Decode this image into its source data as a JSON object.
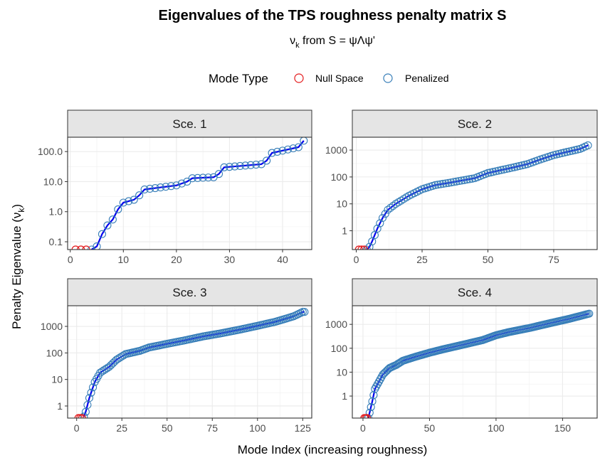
{
  "chart_data": {
    "type": "scatter",
    "title": "Eigenvalues of the TPS roughness penalty matrix S",
    "subtitle": {
      "lhs": "ν",
      "sub": "k",
      "rhs": " from S = ψΛψ'"
    },
    "xlabel": "Mode Index (increasing roughness)",
    "ylabel": {
      "main": "Penalty Eigenvalue (ν",
      "sub": "k",
      "close": ")"
    },
    "y_scale": "log10",
    "legend": {
      "title": "Mode Type",
      "position": "top",
      "entries": [
        {
          "label": "Null Space",
          "color": "#e41a1c"
        },
        {
          "label": "Penalized",
          "color": "#377eb8"
        }
      ]
    },
    "line_color": "#0000ee",
    "panels": [
      {
        "strip": "Sce. 1",
        "n_modes": 44,
        "xlim": [
          -0.5,
          45.5
        ],
        "ylim": [
          0.055,
          300
        ],
        "x_ticks": [
          0,
          10,
          20,
          30,
          40
        ],
        "y_ticks": [
          0.1,
          1,
          10,
          100
        ],
        "y_tick_labels": [
          "0.1",
          "1.0",
          "10.0",
          "100.0"
        ],
        "null_space": [
          {
            "x": 1,
            "y": 0.055
          },
          {
            "x": 2,
            "y": 0.055
          },
          {
            "x": 3,
            "y": 0.055
          }
        ],
        "curve": [
          [
            4,
            0.055
          ],
          [
            5,
            0.07
          ],
          [
            6,
            0.18
          ],
          [
            7,
            0.35
          ],
          [
            8,
            0.55
          ],
          [
            9,
            1.2
          ],
          [
            10,
            2.0
          ],
          [
            12,
            2.5
          ],
          [
            13,
            3.5
          ],
          [
            14,
            5.5
          ],
          [
            20,
            7.5
          ],
          [
            22,
            10
          ],
          [
            23,
            13
          ],
          [
            27,
            14
          ],
          [
            28,
            18
          ],
          [
            29,
            30
          ],
          [
            36,
            38
          ],
          [
            37,
            50
          ],
          [
            38,
            90
          ],
          [
            43,
            140
          ],
          [
            44,
            230
          ]
        ]
      },
      {
        "strip": "Sce. 2",
        "n_modes": 88,
        "xlim": [
          -1.5,
          91.5
        ],
        "ylim": [
          0.2,
          3000
        ],
        "x_ticks": [
          0,
          25,
          50,
          75
        ],
        "y_ticks": [
          1,
          10,
          100,
          1000
        ],
        "y_tick_labels": [
          "1",
          "10",
          "100",
          "1000"
        ],
        "null_space": [
          {
            "x": 1,
            "y": 0.2
          },
          {
            "x": 2,
            "y": 0.2
          },
          {
            "x": 3,
            "y": 0.2
          }
        ],
        "curve": [
          [
            4,
            0.2
          ],
          [
            5,
            0.25
          ],
          [
            6,
            0.4
          ],
          [
            8,
            1.2
          ],
          [
            10,
            3
          ],
          [
            12,
            6
          ],
          [
            15,
            10
          ],
          [
            20,
            20
          ],
          [
            25,
            35
          ],
          [
            30,
            50
          ],
          [
            35,
            60
          ],
          [
            45,
            90
          ],
          [
            50,
            140
          ],
          [
            55,
            180
          ],
          [
            60,
            230
          ],
          [
            65,
            300
          ],
          [
            70,
            450
          ],
          [
            75,
            650
          ],
          [
            80,
            850
          ],
          [
            85,
            1100
          ],
          [
            88,
            1500
          ]
        ]
      },
      {
        "strip": "Sce. 3",
        "n_modes": 126,
        "xlim": [
          -5,
          130
        ],
        "ylim": [
          0.35,
          6000
        ],
        "x_ticks": [
          0,
          25,
          50,
          75,
          100,
          125
        ],
        "y_ticks": [
          1,
          10,
          100,
          1000
        ],
        "y_tick_labels": [
          "1",
          "10",
          "100",
          "1000"
        ],
        "null_space": [
          {
            "x": 1,
            "y": 0.35
          },
          {
            "x": 2,
            "y": 0.35
          },
          {
            "x": 3,
            "y": 0.35
          }
        ],
        "curve": [
          [
            4,
            0.4
          ],
          [
            5,
            0.6
          ],
          [
            7,
            2
          ],
          [
            10,
            8
          ],
          [
            13,
            18
          ],
          [
            18,
            30
          ],
          [
            22,
            55
          ],
          [
            27,
            90
          ],
          [
            35,
            120
          ],
          [
            40,
            160
          ],
          [
            50,
            220
          ],
          [
            60,
            300
          ],
          [
            70,
            420
          ],
          [
            80,
            550
          ],
          [
            90,
            750
          ],
          [
            100,
            1050
          ],
          [
            110,
            1500
          ],
          [
            120,
            2400
          ],
          [
            125,
            3500
          ]
        ]
      },
      {
        "strip": "Sce. 4",
        "n_modes": 170,
        "xlim": [
          -8,
          176
        ],
        "ylim": [
          0.12,
          6000
        ],
        "x_ticks": [
          0,
          50,
          100,
          150
        ],
        "y_ticks": [
          1,
          10,
          100,
          1000
        ],
        "y_tick_labels": [
          "1",
          "10",
          "100",
          "1000"
        ],
        "null_space": [
          {
            "x": 1,
            "y": 0.12
          },
          {
            "x": 2,
            "y": 0.12
          },
          {
            "x": 3,
            "y": 0.12
          }
        ],
        "curve": [
          [
            4,
            0.12
          ],
          [
            5,
            0.2
          ],
          [
            7,
            0.6
          ],
          [
            9,
            2
          ],
          [
            12,
            4
          ],
          [
            15,
            8
          ],
          [
            20,
            15
          ],
          [
            25,
            20
          ],
          [
            30,
            30
          ],
          [
            40,
            45
          ],
          [
            50,
            65
          ],
          [
            60,
            90
          ],
          [
            75,
            140
          ],
          [
            90,
            220
          ],
          [
            100,
            350
          ],
          [
            110,
            480
          ],
          [
            125,
            700
          ],
          [
            140,
            1100
          ],
          [
            155,
            1700
          ],
          [
            170,
            2800
          ]
        ]
      }
    ]
  }
}
